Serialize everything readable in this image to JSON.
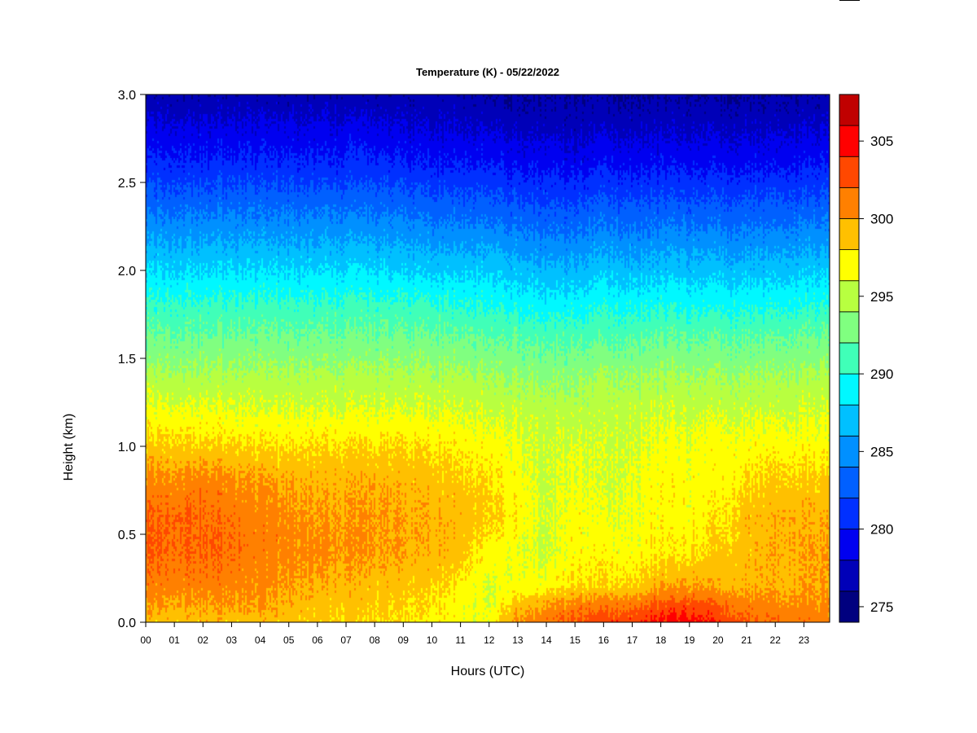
{
  "chart_data": {
    "type": "heatmap",
    "title": "Temperature (K) - 05/22/2022",
    "xlabel": "Hours (UTC)",
    "ylabel": "Height (km)",
    "x_ticks": [
      "00",
      "01",
      "02",
      "03",
      "04",
      "05",
      "06",
      "07",
      "08",
      "09",
      "10",
      "11",
      "12",
      "13",
      "14",
      "15",
      "16",
      "17",
      "18",
      "19",
      "20",
      "21",
      "22",
      "23"
    ],
    "xlim": [
      0,
      23.9
    ],
    "y_ticks": [
      "0.0",
      "0.5",
      "1.0",
      "1.5",
      "2.0",
      "2.5",
      "3.0"
    ],
    "ylim": [
      0,
      3.0
    ],
    "colorbar": {
      "levels": [
        274,
        276,
        278,
        280,
        282,
        284,
        286,
        288,
        290,
        292,
        294,
        296,
        298,
        300,
        302,
        304,
        306,
        308
      ],
      "colors": [
        "#00007f",
        "#0000b8",
        "#0000f0",
        "#0030ff",
        "#0060ff",
        "#0090ff",
        "#00c0ff",
        "#00f8ff",
        "#40ffb8",
        "#80ff80",
        "#b8ff40",
        "#ffff00",
        "#ffc000",
        "#ff8000",
        "#ff4800",
        "#ff0000",
        "#c00000",
        "#800000"
      ],
      "tick_labels": [
        "275",
        "280",
        "285",
        "290",
        "295",
        "300",
        "305"
      ],
      "tick_values": [
        275,
        280,
        285,
        290,
        295,
        300,
        305
      ]
    },
    "temperature_profile": {
      "heights_km": [
        0.0,
        0.1,
        0.2,
        0.4,
        0.6,
        0.8,
        1.0,
        1.2,
        1.4,
        1.6,
        1.8,
        2.0,
        2.2,
        2.4,
        2.6,
        2.8,
        3.0
      ],
      "hours": [
        0,
        2,
        4,
        6,
        8,
        10,
        11,
        12,
        13,
        14,
        15,
        16,
        17,
        18,
        19,
        20,
        21,
        22,
        23.9
      ],
      "values_K": [
        [
          299.0,
          299.0,
          299.0,
          298.5,
          298.0,
          297.5,
          297.0,
          296.5,
          300.5,
          301.5,
          302.5,
          303.0,
          303.5,
          304.5,
          305.0,
          303.5,
          302.5,
          301.5,
          301.0
        ],
        [
          300.0,
          300.0,
          300.0,
          299.0,
          298.5,
          298.0,
          297.0,
          296.0,
          299.0,
          300.0,
          301.0,
          301.0,
          301.5,
          302.5,
          303.0,
          302.0,
          301.0,
          300.5,
          300.5
        ],
        [
          301.0,
          301.0,
          300.5,
          299.5,
          299.0,
          298.5,
          297.5,
          296.0,
          297.0,
          297.0,
          298.0,
          298.0,
          298.5,
          299.5,
          300.0,
          299.5,
          299.5,
          299.5,
          300.0
        ],
        [
          302.0,
          302.0,
          301.0,
          300.5,
          300.0,
          299.5,
          299.0,
          297.0,
          296.5,
          295.5,
          297.0,
          297.0,
          297.0,
          297.5,
          297.5,
          298.5,
          299.0,
          299.5,
          300.0
        ],
        [
          302.0,
          302.0,
          301.0,
          300.0,
          300.0,
          299.5,
          299.5,
          298.5,
          297.5,
          295.5,
          297.0,
          296.0,
          296.5,
          297.0,
          297.0,
          297.5,
          299.0,
          299.5,
          299.5
        ],
        [
          300.5,
          301.0,
          300.0,
          299.5,
          299.5,
          299.0,
          298.5,
          298.0,
          297.0,
          295.5,
          296.5,
          295.5,
          296.5,
          297.0,
          297.0,
          297.0,
          298.0,
          298.5,
          298.5
        ],
        [
          298.5,
          298.5,
          298.0,
          298.0,
          298.0,
          298.0,
          297.5,
          297.0,
          296.5,
          295.5,
          296.0,
          295.5,
          296.0,
          296.5,
          296.5,
          297.0,
          297.0,
          297.0,
          297.0
        ],
        [
          296.5,
          296.5,
          296.0,
          296.0,
          296.0,
          296.0,
          296.0,
          295.5,
          295.5,
          295.0,
          295.0,
          295.0,
          295.5,
          295.5,
          295.5,
          295.5,
          295.5,
          295.5,
          296.0
        ],
        [
          294.5,
          294.5,
          294.5,
          294.5,
          294.5,
          294.5,
          294.5,
          294.0,
          294.0,
          293.5,
          293.5,
          294.0,
          294.0,
          294.0,
          294.0,
          294.0,
          294.0,
          294.0,
          294.5
        ],
        [
          292.5,
          292.5,
          292.5,
          292.5,
          292.5,
          292.5,
          292.5,
          292.0,
          292.0,
          291.5,
          291.5,
          291.5,
          292.0,
          292.0,
          292.0,
          292.0,
          292.0,
          292.0,
          292.5
        ],
        [
          290.5,
          290.5,
          290.5,
          290.5,
          290.5,
          290.5,
          290.0,
          290.0,
          289.5,
          289.0,
          289.0,
          289.5,
          289.5,
          289.5,
          289.5,
          289.5,
          289.5,
          289.5,
          290.0
        ],
        [
          288.0,
          288.0,
          288.0,
          288.0,
          288.0,
          287.5,
          287.5,
          287.5,
          287.0,
          286.5,
          286.5,
          287.0,
          287.0,
          287.0,
          287.0,
          287.0,
          287.0,
          287.0,
          287.5
        ],
        [
          285.5,
          285.5,
          285.5,
          285.5,
          285.5,
          285.0,
          285.0,
          285.0,
          284.5,
          284.0,
          284.0,
          284.5,
          284.5,
          284.5,
          284.5,
          284.5,
          284.5,
          284.5,
          285.0
        ],
        [
          283.0,
          283.0,
          283.0,
          283.0,
          283.0,
          282.5,
          282.5,
          282.5,
          282.0,
          281.5,
          281.5,
          282.0,
          282.0,
          282.0,
          282.0,
          282.0,
          282.0,
          282.0,
          282.5
        ],
        [
          280.5,
          280.5,
          280.5,
          280.5,
          280.5,
          280.0,
          280.0,
          280.0,
          279.5,
          279.5,
          279.0,
          279.5,
          279.5,
          279.5,
          279.5,
          279.5,
          279.5,
          279.5,
          280.0
        ],
        [
          278.5,
          278.5,
          278.5,
          278.5,
          278.5,
          278.0,
          278.0,
          278.0,
          277.5,
          277.5,
          277.0,
          277.5,
          277.5,
          277.5,
          277.5,
          277.5,
          277.5,
          277.5,
          278.0
        ],
        [
          276.5,
          276.5,
          276.5,
          276.5,
          276.5,
          276.5,
          276.5,
          276.0,
          276.0,
          276.0,
          276.0,
          276.0,
          276.0,
          276.0,
          276.0,
          276.0,
          276.0,
          276.0,
          276.5
        ]
      ]
    },
    "grid": false,
    "legend": "right"
  }
}
